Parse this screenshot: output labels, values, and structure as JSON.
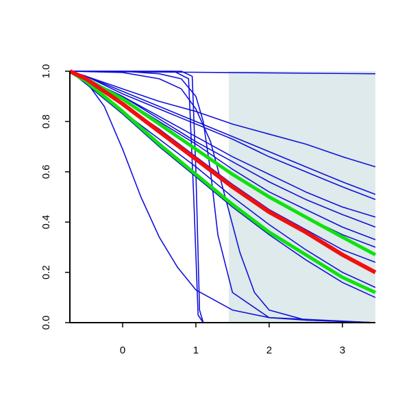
{
  "chart_data": {
    "type": "line",
    "xlim": [
      -0.72,
      3.45
    ],
    "ylim": [
      0,
      1
    ],
    "xticks": [
      0,
      1,
      2,
      3
    ],
    "yticks": [
      {
        "value": 0,
        "label": "0.0"
      },
      {
        "value": 0.2,
        "label": "0.2"
      },
      {
        "value": 0.4,
        "label": "0.4"
      },
      {
        "value": 0.6,
        "label": "0.6"
      },
      {
        "value": 0.8,
        "label": "0.8"
      },
      {
        "value": 1,
        "label": "1.0"
      }
    ],
    "shade": {
      "x": [
        1.45,
        3.45
      ],
      "y": [
        0,
        1
      ],
      "color": "#deeaeb"
    },
    "series": [
      {
        "color": "#1010d8",
        "width": 1.6,
        "x": [
          -0.72,
          3.45
        ],
        "values": [
          1,
          0.99
        ]
      },
      {
        "color": "#1010d8",
        "width": 1.6,
        "x": [
          -0.72,
          -0.5,
          0,
          0.5,
          1,
          1.5,
          2,
          2.5,
          3,
          3.45
        ],
        "values": [
          1,
          0.98,
          0.93,
          0.88,
          0.84,
          0.79,
          0.75,
          0.71,
          0.66,
          0.62
        ]
      },
      {
        "color": "#1010d8",
        "width": 1.6,
        "x": [
          -0.72,
          -0.5,
          0,
          0.5,
          1,
          1.5,
          2,
          2.5,
          3,
          3.45
        ],
        "values": [
          1,
          0.98,
          0.92,
          0.86,
          0.8,
          0.74,
          0.68,
          0.62,
          0.56,
          0.51
        ]
      },
      {
        "color": "#1010d8",
        "width": 1.6,
        "x": [
          -0.72,
          -0.5,
          0,
          0.5,
          1,
          1.5,
          2,
          2.5,
          3,
          3.45
        ],
        "values": [
          1,
          0.98,
          0.91,
          0.85,
          0.79,
          0.73,
          0.66,
          0.6,
          0.54,
          0.49
        ]
      },
      {
        "color": "#1010d8",
        "width": 1.6,
        "x": [
          -0.72,
          -0.5,
          0,
          0.5,
          1,
          1.5,
          2,
          2.5,
          3,
          3.45
        ],
        "values": [
          1,
          0.97,
          0.9,
          0.82,
          0.74,
          0.66,
          0.59,
          0.52,
          0.46,
          0.42
        ]
      },
      {
        "color": "#1010d8",
        "width": 1.6,
        "x": [
          -0.72,
          -0.5,
          0,
          0.5,
          1,
          1.5,
          2,
          2.5,
          3,
          3.45
        ],
        "values": [
          1,
          0.97,
          0.9,
          0.81,
          0.72,
          0.64,
          0.56,
          0.49,
          0.43,
          0.38
        ]
      },
      {
        "color": "#1010d8",
        "width": 1.6,
        "x": [
          -0.72,
          -0.5,
          0,
          0.5,
          1,
          1.5,
          2,
          2.5,
          3,
          3.45
        ],
        "values": [
          1,
          0.97,
          0.89,
          0.8,
          0.71,
          0.61,
          0.52,
          0.45,
          0.38,
          0.33
        ]
      },
      {
        "color": "#1010d8",
        "width": 1.6,
        "x": [
          -0.72,
          -0.5,
          0,
          0.5,
          1,
          1.5,
          2,
          2.5,
          3,
          3.45
        ],
        "values": [
          1,
          0.97,
          0.89,
          0.79,
          0.69,
          0.59,
          0.5,
          0.42,
          0.35,
          0.3
        ]
      },
      {
        "color": "#1010d8",
        "width": 1.6,
        "x": [
          -0.72,
          -0.5,
          0,
          0.5,
          1,
          1.5,
          2,
          2.5,
          3,
          3.45
        ],
        "values": [
          1,
          0.96,
          0.87,
          0.77,
          0.66,
          0.55,
          0.45,
          0.37,
          0.29,
          0.24
        ]
      },
      {
        "color": "#1010d8",
        "width": 1.6,
        "x": [
          -0.72,
          -0.5,
          0,
          0.5,
          1,
          1.5,
          2,
          2.5,
          3,
          3.45
        ],
        "values": [
          1,
          0.95,
          0.84,
          0.73,
          0.62,
          0.5,
          0.39,
          0.29,
          0.2,
          0.14
        ]
      },
      {
        "color": "#1010d8",
        "width": 1.6,
        "x": [
          -0.72,
          -0.5,
          0,
          0.5,
          1,
          1.5,
          2,
          2.5,
          3,
          3.45
        ],
        "values": [
          1,
          0.95,
          0.83,
          0.7,
          0.58,
          0.46,
          0.35,
          0.25,
          0.16,
          0.1
        ]
      },
      {
        "color": "#1010d8",
        "width": 1.6,
        "x": [
          -0.72,
          -0.5,
          -0.25,
          0,
          0.25,
          0.5,
          0.75,
          1,
          1.5,
          2,
          2.5,
          3.45
        ],
        "values": [
          1,
          0.96,
          0.86,
          0.69,
          0.5,
          0.34,
          0.22,
          0.13,
          0.05,
          0.02,
          0.01,
          0
        ]
      },
      {
        "color": "#1010d8",
        "width": 1.6,
        "x": [
          -0.72,
          0.8,
          0.95,
          1.0,
          1.05,
          1.1,
          3.45
        ],
        "values": [
          1,
          1,
          0.98,
          0.6,
          0.05,
          0,
          0
        ]
      },
      {
        "color": "#1010d8",
        "width": 1.6,
        "x": [
          -0.72,
          0.7,
          0.9,
          0.97,
          1.03,
          1.1,
          3.45
        ],
        "values": [
          1,
          1,
          0.97,
          0.5,
          0.03,
          0,
          0
        ]
      },
      {
        "color": "#1010d8",
        "width": 1.6,
        "x": [
          -0.72,
          0,
          0.5,
          0.8,
          1,
          1.1,
          1.2,
          1.3,
          1.5,
          2,
          3.45
        ],
        "values": [
          1,
          1,
          0.99,
          0.97,
          0.9,
          0.8,
          0.6,
          0.35,
          0.12,
          0.02,
          0
        ]
      },
      {
        "color": "#1010d8",
        "width": 1.6,
        "x": [
          -0.72,
          0,
          0.5,
          0.8,
          1,
          1.2,
          1.4,
          1.6,
          1.8,
          2,
          2.5,
          3.45
        ],
        "values": [
          1,
          0.995,
          0.97,
          0.93,
          0.85,
          0.72,
          0.5,
          0.28,
          0.12,
          0.05,
          0.01,
          0
        ]
      },
      {
        "color": "#10e010",
        "width": 5,
        "x": [
          -0.72,
          -0.5,
          0,
          0.5,
          1,
          1.5,
          2,
          2.5,
          3,
          3.45
        ],
        "values": [
          1,
          0.97,
          0.89,
          0.79,
          0.69,
          0.59,
          0.5,
          0.42,
          0.34,
          0.27
        ]
      },
      {
        "color": "#10e010",
        "width": 5,
        "x": [
          -0.72,
          -0.5,
          0,
          0.5,
          1,
          1.5,
          2,
          2.5,
          3,
          3.45
        ],
        "values": [
          1,
          0.96,
          0.84,
          0.71,
          0.59,
          0.47,
          0.36,
          0.27,
          0.18,
          0.12
        ]
      },
      {
        "color": "#f01010",
        "width": 6,
        "x": [
          -0.72,
          -0.5,
          0,
          0.5,
          1,
          1.5,
          2,
          2.5,
          3,
          3.45
        ],
        "values": [
          1,
          0.97,
          0.87,
          0.76,
          0.65,
          0.54,
          0.44,
          0.36,
          0.27,
          0.2
        ]
      }
    ]
  }
}
